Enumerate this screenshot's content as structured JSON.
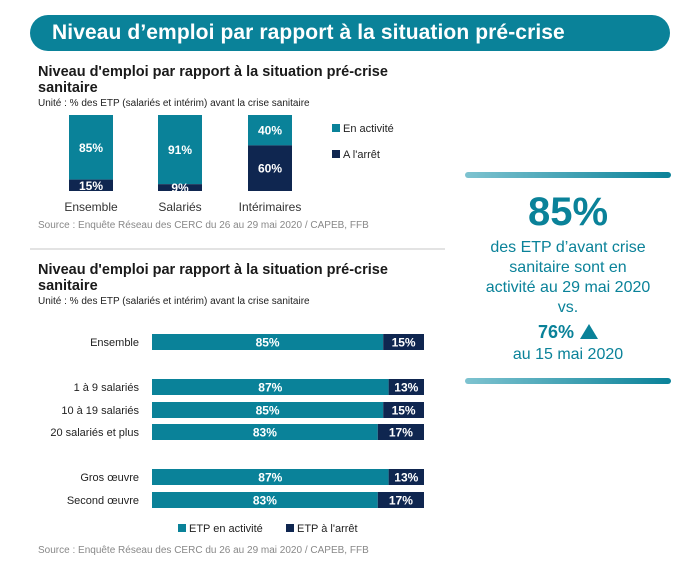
{
  "banner": {
    "title": "Niveau d’emploi par rapport à la situation pré-crise"
  },
  "colors": {
    "active": "#0a8299",
    "stopped": "#0f2650",
    "banner": "#0a8299"
  },
  "chart_data": [
    {
      "type": "bar",
      "orientation": "vertical",
      "stacked": true,
      "title": "Niveau d'emploi par rapport à la situation pré-crise sanitaire",
      "subtitle": "Unité : % des ETP (salariés et intérim) avant la crise sanitaire",
      "categories": [
        "Ensemble",
        "Salariés",
        "Intérimaires"
      ],
      "series": [
        {
          "name": "En activité",
          "values": [
            85,
            91,
            40
          ]
        },
        {
          "name": "A l'arrêt",
          "values": [
            15,
            9,
            60
          ]
        }
      ],
      "ylim": [
        0,
        100
      ],
      "legend_position": "right",
      "source": "Source : Enquête Réseau des CERC du 26 au 29 mai 2020 / CAPEB, FFB"
    },
    {
      "type": "bar",
      "orientation": "horizontal",
      "stacked": true,
      "title": "Niveau d'emploi par rapport à la situation pré-crise sanitaire",
      "subtitle": "Unité : % des ETP (salariés et intérim) avant la crise sanitaire",
      "categories": [
        "Ensemble",
        "1 à 9 salariés",
        "10 à 19 salariés",
        "20 salariés et plus",
        "Gros œuvre",
        "Second œuvre"
      ],
      "groups": [
        [
          0
        ],
        [
          1,
          2,
          3
        ],
        [
          4,
          5
        ]
      ],
      "series": [
        {
          "name": "ETP en activité",
          "values": [
            85,
            87,
            85,
            83,
            87,
            83
          ]
        },
        {
          "name": "ETP à l'arrêt",
          "values": [
            15,
            13,
            15,
            17,
            13,
            17
          ]
        }
      ],
      "xlim": [
        0,
        100
      ],
      "legend_position": "bottom",
      "source": "Source : Enquête Réseau des CERC du 26 au 29 mai 2020 / CAPEB, FFB"
    }
  ],
  "kpi": {
    "value": "85%",
    "description_lines": [
      "des ETP d’avant crise",
      "sanitaire sont en",
      "activité au 29 mai 2020",
      "vs."
    ],
    "previous_value": "76%",
    "trend_icon": "triangle-up-icon",
    "previous_date": "au 15 mai 2020"
  }
}
